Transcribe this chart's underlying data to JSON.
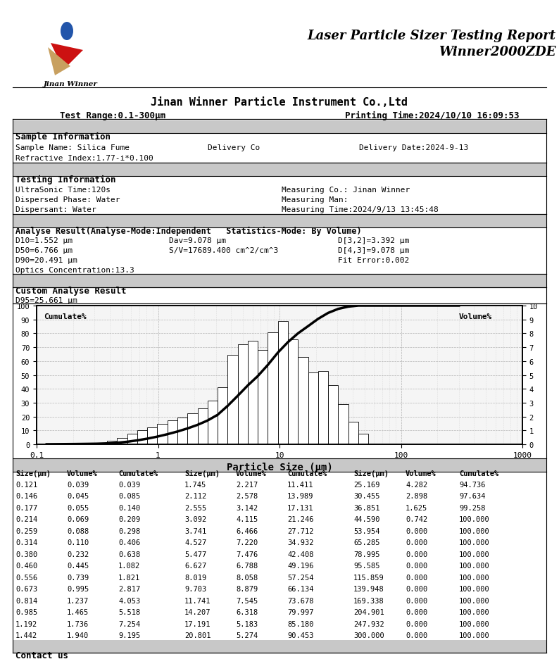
{
  "title_line1": "Laser Particle Sizer Testing Report",
  "title_line2": "Winner2000ZDE",
  "company_name": "Jinan Winner Particle Instrument Co.,Ltd",
  "test_range": "Test Range:0.1-300μm",
  "printing_time": "Printing Time:2024/10/10 16:09:53",
  "jinan_winner_label": "Jinan Winner",
  "sample_info_title": "Sample Information",
  "sample_name_label": "Sample Name: Silica Fume",
  "delivery_co_label": "Delivery Co",
  "delivery_date_label": "Delivery Date:2024-9-13",
  "refractive_label": "Refractive Index:1.77-i*0.100",
  "testing_info_title": "Testing Information",
  "ultrasonic_label": "UltraSonic Time:120s",
  "measuring_co_label": "Measuring Co.: Jinan Winner",
  "dispersed_label": "Dispersed Phase: Water",
  "measuring_man_label": "Measuring Man:",
  "dispersant_label": "Dispersant: Water",
  "measuring_time_label": "Measuring Time:2024/9/13 13:45:48",
  "analyse_title": "Analyse Result(Analyse-Mode:Independent   Statistics-Mode: By Volume)",
  "d10_label": "D10=1.552 μm",
  "dav_label": "Dav=9.078 μm",
  "d32_label": "D[3,2]=3.392 μm",
  "d50_label": "D50=6.766 μm",
  "sv_label": "S/V=17689.400 cm^2/cm^3",
  "d43_label": "D[4,3]=9.078 μm",
  "d90_label": "D90=20.491 μm",
  "fit_error_label": "Fit Error:0.002",
  "optics_label": "Optics Concentration:13.3",
  "custom_title": "Custom Analyse Result",
  "d95_label": "D95=25.661 μm",
  "xlabel": "Particle Size (μm)",
  "ylabel_left": "Cumulate%",
  "ylabel_right": "Volume%",
  "bar_sizes": [
    0.121,
    0.146,
    0.177,
    0.214,
    0.259,
    0.314,
    0.38,
    0.46,
    0.556,
    0.673,
    0.814,
    0.985,
    1.192,
    1.442,
    1.745,
    2.112,
    2.555,
    3.092,
    3.741,
    4.527,
    5.477,
    6.627,
    8.019,
    9.703,
    11.741,
    14.207,
    17.191,
    20.801,
    25.169,
    30.455,
    36.851,
    44.59,
    53.954,
    65.285,
    78.995,
    95.585,
    115.859,
    139.948,
    169.338,
    204.901,
    247.932,
    300.0
  ],
  "bar_volumes": [
    0.039,
    0.045,
    0.055,
    0.069,
    0.088,
    0.11,
    0.232,
    0.445,
    0.739,
    0.995,
    1.237,
    1.465,
    1.736,
    1.94,
    2.217,
    2.578,
    3.142,
    4.115,
    6.466,
    7.22,
    7.476,
    6.788,
    8.058,
    8.879,
    7.545,
    6.318,
    5.183,
    5.274,
    4.282,
    2.898,
    1.625,
    0.742,
    0.0,
    0.0,
    0.0,
    0.0,
    0.0,
    0.0,
    0.0,
    0.0,
    0.0,
    0.0
  ],
  "cumulate_vals": [
    0.039,
    0.085,
    0.14,
    0.209,
    0.298,
    0.406,
    0.638,
    1.082,
    1.821,
    2.817,
    4.053,
    5.518,
    7.254,
    9.195,
    11.411,
    13.989,
    17.131,
    21.246,
    27.712,
    34.932,
    42.408,
    49.196,
    57.254,
    66.134,
    73.678,
    79.997,
    85.18,
    90.453,
    94.736,
    97.634,
    99.258,
    100.0,
    100.0,
    100.0,
    100.0,
    100.0,
    100.0,
    100.0,
    100.0,
    100.0,
    100.0,
    100.0
  ],
  "table_data": [
    [
      0.121,
      0.039,
      0.039,
      1.745,
      2.217,
      11.411,
      25.169,
      4.282,
      94.736
    ],
    [
      0.146,
      0.045,
      0.085,
      2.112,
      2.578,
      13.989,
      30.455,
      2.898,
      97.634
    ],
    [
      0.177,
      0.055,
      0.14,
      2.555,
      3.142,
      17.131,
      36.851,
      1.625,
      99.258
    ],
    [
      0.214,
      0.069,
      0.209,
      3.092,
      4.115,
      21.246,
      44.59,
      0.742,
      100.0
    ],
    [
      0.259,
      0.088,
      0.298,
      3.741,
      6.466,
      27.712,
      53.954,
      0.0,
      100.0
    ],
    [
      0.314,
      0.11,
      0.406,
      4.527,
      7.22,
      34.932,
      65.285,
      0.0,
      100.0
    ],
    [
      0.38,
      0.232,
      0.638,
      5.477,
      7.476,
      42.408,
      78.995,
      0.0,
      100.0
    ],
    [
      0.46,
      0.445,
      1.082,
      6.627,
      6.788,
      49.196,
      95.585,
      0.0,
      100.0
    ],
    [
      0.556,
      0.739,
      1.821,
      8.019,
      8.058,
      57.254,
      115.859,
      0.0,
      100.0
    ],
    [
      0.673,
      0.995,
      2.817,
      9.703,
      8.879,
      66.134,
      139.948,
      0.0,
      100.0
    ],
    [
      0.814,
      1.237,
      4.053,
      11.741,
      7.545,
      73.678,
      169.338,
      0.0,
      100.0
    ],
    [
      0.985,
      1.465,
      5.518,
      14.207,
      6.318,
      79.997,
      204.901,
      0.0,
      100.0
    ],
    [
      1.192,
      1.736,
      7.254,
      17.191,
      5.183,
      85.18,
      247.932,
      0.0,
      100.0
    ],
    [
      1.442,
      1.94,
      9.195,
      20.801,
      5.274,
      90.453,
      300.0,
      0.0,
      100.0
    ]
  ],
  "table_headers": [
    "Size(μm)Volume%",
    "Cumulate%",
    "Size(μm)Volume%",
    "Cumulate%",
    "Size(μm)Volume%",
    "Cumulate%"
  ],
  "table_col_headers": [
    "Size(μm)",
    "Volume%",
    "Cumulate%",
    "Size(μm)",
    "Volume%",
    "Cumulate%",
    "Size(μm)",
    "Volume%",
    "Cumulate%"
  ],
  "bg_color": "#ffffff",
  "section_bg_color": "#c8c8c8",
  "bar_color": "#ffffff",
  "bar_edge_color": "#000000",
  "curve_color": "#000000",
  "contact_label": "Contact us"
}
